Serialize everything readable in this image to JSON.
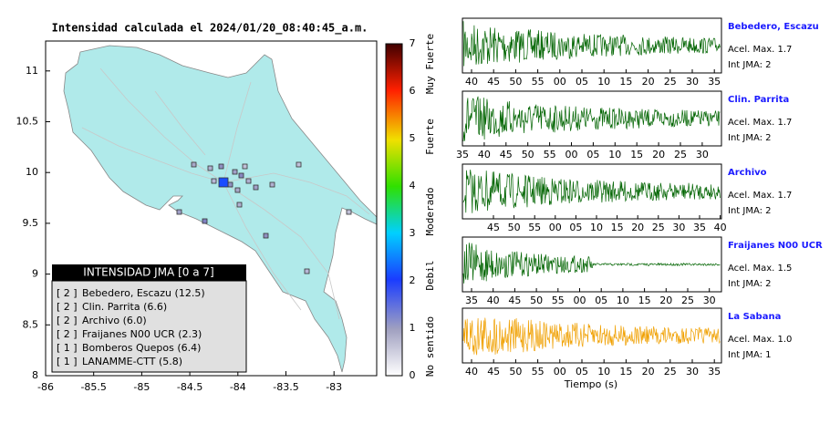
{
  "map": {
    "title": "Intensidad calculada el 2024/01/20_08:40:45_a.m.",
    "xticks": [
      "-86",
      "-85.5",
      "-85",
      "-84.5",
      "-84",
      "-83.5",
      "-83"
    ],
    "yticks": [
      "8",
      "8.5",
      "9",
      "9.5",
      "10",
      "10.5",
      "11"
    ]
  },
  "colorbar": {
    "ticks": [
      "0",
      "1",
      "2",
      "3",
      "4",
      "5",
      "6",
      "7"
    ],
    "labels": [
      "Muy Fuerte",
      "Fuerte",
      "Moderado",
      "Debil",
      "No sentido"
    ]
  },
  "legend": {
    "title": "INTENSIDAD JMA [0 a 7]",
    "items": [
      [
        "[ 2 ]",
        "Bebedero, Escazu (12.5)"
      ],
      [
        "[ 2 ]",
        "Clin. Parrita (6.6)"
      ],
      [
        "[ 2 ]",
        "Archivo (6.0)"
      ],
      [
        "[ 2 ]",
        "Fraijanes N00 UCR (2.3)"
      ],
      [
        "[ 1 ]",
        "Bomberos Quepos (6.4)"
      ],
      [
        "[ 1 ]",
        "LANAMME-CTT (5.8)"
      ]
    ]
  },
  "panels": [
    {
      "station": "Bebedero, Escazu",
      "accel": "Acel. Max. 1.7",
      "int": "Int JMA: 2",
      "ticks": [
        "40",
        "45",
        "50",
        "55",
        "00",
        "05",
        "10",
        "15",
        "20",
        "25",
        "30",
        "35"
      ]
    },
    {
      "station": "Clin. Parrita",
      "accel": "Acel. Max. 1.7",
      "int": "Int JMA: 2",
      "ticks": [
        "35",
        "40",
        "45",
        "50",
        "55",
        "00",
        "05",
        "10",
        "15",
        "20",
        "25",
        "30"
      ]
    },
    {
      "station": "Archivo",
      "accel": "Acel. Max. 1.7",
      "int": "Int JMA: 2",
      "ticks": [
        "45",
        "50",
        "55",
        "00",
        "05",
        "10",
        "15",
        "20",
        "25",
        "30",
        "35",
        "40"
      ]
    },
    {
      "station": "Fraijanes N00 UCR",
      "accel": "Acel. Max. 1.5",
      "int": "Int JMA: 2",
      "ticks": [
        "35",
        "40",
        "45",
        "50",
        "55",
        "00",
        "05",
        "10",
        "15",
        "20",
        "25",
        "30"
      ]
    },
    {
      "station": "La Sabana",
      "accel": "Acel. Max. 1.0",
      "int": "Int JMA: 1",
      "ticks": [
        "40",
        "45",
        "50",
        "55",
        "00",
        "05",
        "10",
        "15",
        "20",
        "25",
        "30",
        "35"
      ]
    }
  ],
  "xlabel": "Tiempo (s)"
}
